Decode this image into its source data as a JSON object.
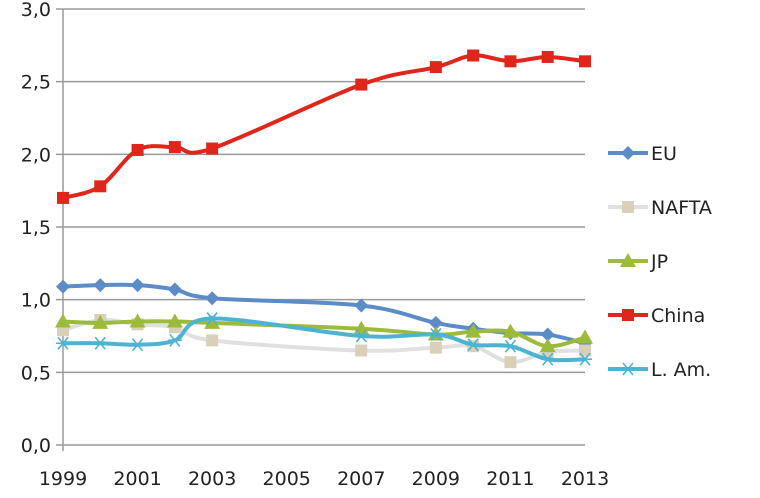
{
  "chart_data": {
    "type": "line",
    "title": "",
    "xlabel": "",
    "ylabel": "",
    "x": [
      1999,
      2000,
      2001,
      2002,
      2003,
      2007,
      2009,
      2010,
      2011,
      2012,
      2013
    ],
    "x_ticks": [
      "1999",
      "2001",
      "2003",
      "2005",
      "2007",
      "2009",
      "2011",
      "2013"
    ],
    "x_tick_values": [
      1999,
      2001,
      2003,
      2005,
      2007,
      2009,
      2011,
      2013
    ],
    "xlim": [
      1999,
      2013
    ],
    "y_ticks": [
      "0,0",
      "0,5",
      "1,0",
      "1,5",
      "2,0",
      "2,5",
      "3,0"
    ],
    "y_tick_values": [
      0,
      0.5,
      1.0,
      1.5,
      2.0,
      2.5,
      3.0
    ],
    "ylim": [
      0,
      3.0
    ],
    "grid": "horizontal",
    "legend_position": "right",
    "smooth": true,
    "series": [
      {
        "name": "EU",
        "color": "#5b8cc8",
        "marker": "diamond",
        "values": [
          1.09,
          1.1,
          1.1,
          1.07,
          1.01,
          0.96,
          0.84,
          0.8,
          0.77,
          0.76,
          0.7
        ]
      },
      {
        "name": "NAFTA",
        "color": "#d8d0b8",
        "line_color": "#e0e0e0",
        "marker": "square",
        "values": [
          0.79,
          0.86,
          0.83,
          0.81,
          0.72,
          0.65,
          0.67,
          0.68,
          0.57,
          0.64,
          0.65
        ]
      },
      {
        "name": "JP",
        "color": "#9dbb3a",
        "marker": "triangle",
        "values": [
          0.85,
          0.84,
          0.85,
          0.85,
          0.84,
          0.8,
          0.76,
          0.78,
          0.78,
          0.68,
          0.74
        ]
      },
      {
        "name": "China",
        "color": "#e0251b",
        "marker": "square",
        "values": [
          1.7,
          1.78,
          2.03,
          2.05,
          2.04,
          2.48,
          2.6,
          2.68,
          2.64,
          2.67,
          2.64
        ]
      },
      {
        "name": "L. Am.",
        "color": "#4cb3d3",
        "marker": "star",
        "values": [
          0.7,
          0.7,
          0.69,
          0.72,
          0.87,
          0.75,
          0.76,
          0.69,
          0.68,
          0.59,
          0.59
        ]
      }
    ]
  }
}
